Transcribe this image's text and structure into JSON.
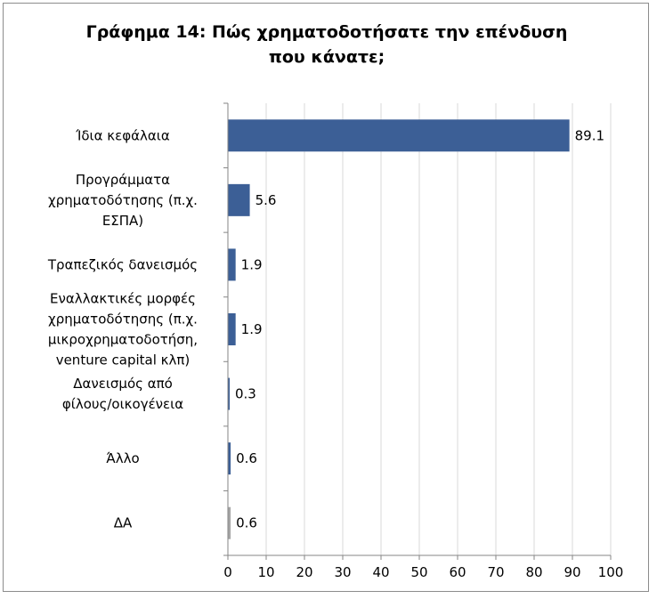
{
  "chart_data": {
    "type": "bar",
    "orientation": "horizontal",
    "title_lines": [
      "Γράφημα 14: Πώς χρηματοδοτήσατε την επένδυση",
      "που κάνατε;"
    ],
    "categories": [
      "Ίδια κεφάλαια",
      "Προγράμματα χρηματοδότησης (π.χ. ΕΣΠΑ)",
      "Τραπεζικός δανεισμός",
      "Εναλλακτικές μορφές χρηματοδότησης (π.χ. μικροχρηματοδοτήση, venture capital κλπ)",
      "Δανεισμός από φίλους/οικογένεια",
      "Άλλο",
      "ΔΑ"
    ],
    "category_label_lines": [
      [
        "Ίδια κεφάλαια"
      ],
      [
        "Προγράμματα",
        "χρηματοδότησης (π.χ.",
        "ΕΣΠΑ)"
      ],
      [
        "Τραπεζικός δανεισμός"
      ],
      [
        "Εναλλακτικές μορφές",
        "χρηματοδότησης (π.χ.",
        "μικροχρηματοδοτήση,",
        "venture capital κλπ)"
      ],
      [
        "Δανεισμός από",
        "φίλους/οικογένεια"
      ],
      [
        "Άλλο"
      ],
      [
        "ΔΑ"
      ]
    ],
    "values": [
      89.1,
      5.6,
      1.9,
      1.9,
      0.3,
      0.6,
      0.6
    ],
    "data_labels": [
      "89.1",
      "5.6",
      "1.9",
      "1.9",
      "0.3",
      "0.6",
      "0.6"
    ],
    "bar_colors": [
      "#3c5f96",
      "#3c5f96",
      "#3c5f96",
      "#3c5f96",
      "#3c5f96",
      "#3c5f96",
      "#a6a6a6"
    ],
    "xlim": [
      0,
      100
    ],
    "xticks": [
      0,
      10,
      20,
      30,
      40,
      50,
      60,
      70,
      80,
      90,
      100
    ],
    "grid": true,
    "xlabel": "",
    "ylabel": ""
  }
}
